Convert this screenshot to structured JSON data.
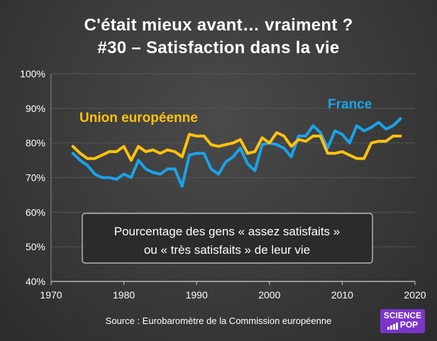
{
  "title_line1": "C'était mieux avant… vraiment ?",
  "title_line2": "#30 – Satisfaction dans la vie",
  "annotation_line1": "Pourcentage des gens « assez satisfaits »",
  "annotation_line2": "ou « très satisfaits » de leur vie",
  "source": "Source : Eurobaromètre de la Commission européenne",
  "logo": {
    "line1": "SCIENCE",
    "line2": "POP"
  },
  "colors": {
    "eu": "#ffc20e",
    "france": "#1aa3e8",
    "background": "#3a3a3a",
    "grid": "#555555"
  },
  "chart_data": {
    "type": "line",
    "title": "C'était mieux avant… vraiment ? #30 – Satisfaction dans la vie",
    "xlabel": "",
    "ylabel": "",
    "xlim": [
      1970,
      2020
    ],
    "ylim": [
      40,
      100
    ],
    "x_ticks": [
      1970,
      1980,
      1990,
      2000,
      2010,
      2020
    ],
    "y_ticks": [
      40,
      50,
      60,
      70,
      80,
      90,
      100
    ],
    "y_tick_labels": [
      "40%",
      "50%",
      "60%",
      "70%",
      "80%",
      "90%",
      "100%"
    ],
    "grid": true,
    "series": [
      {
        "name": "Union européenne",
        "color": "#ffc20e",
        "x": [
          1973,
          1974,
          1975,
          1976,
          1977,
          1978,
          1979,
          1980,
          1981,
          1982,
          1983,
          1984,
          1985,
          1986,
          1987,
          1988,
          1989,
          1990,
          1991,
          1992,
          1993,
          1994,
          1995,
          1996,
          1997,
          1998,
          1999,
          2000,
          2001,
          2002,
          2003,
          2004,
          2005,
          2006,
          2007,
          2008,
          2009,
          2010,
          2011,
          2012,
          2013,
          2014,
          2015,
          2016,
          2017,
          2018
        ],
        "values": [
          79,
          77,
          75.5,
          75.5,
          76.5,
          77.5,
          77.5,
          79,
          75,
          79,
          77.5,
          78,
          77,
          78,
          77.5,
          76,
          82.5,
          82,
          82,
          79.5,
          79,
          79.5,
          80,
          81,
          77,
          77.5,
          81.5,
          80,
          83,
          82,
          79,
          81,
          80.5,
          82,
          82,
          77,
          77,
          77.5,
          76.5,
          75.5,
          75.5,
          80,
          80.5,
          80.5,
          82,
          82
        ]
      },
      {
        "name": "France",
        "color": "#1aa3e8",
        "x": [
          1973,
          1974,
          1975,
          1976,
          1977,
          1978,
          1979,
          1980,
          1981,
          1982,
          1983,
          1984,
          1985,
          1986,
          1987,
          1988,
          1989,
          1990,
          1991,
          1992,
          1993,
          1994,
          1995,
          1996,
          1997,
          1998,
          1999,
          2000,
          2001,
          2002,
          2003,
          2004,
          2005,
          2006,
          2007,
          2008,
          2009,
          2010,
          2011,
          2012,
          2013,
          2014,
          2015,
          2016,
          2017,
          2018
        ],
        "values": [
          77,
          75,
          73.5,
          71,
          70,
          70,
          69.5,
          71,
          70,
          75,
          72.5,
          71.5,
          71,
          72.5,
          72.5,
          67.5,
          76.5,
          77,
          77,
          72.5,
          71,
          74.5,
          76,
          78.5,
          74,
          72,
          79.5,
          80,
          79.5,
          78.5,
          76,
          82,
          82,
          85,
          83,
          78.5,
          83.5,
          82.5,
          80,
          85,
          83.5,
          84.5,
          86,
          84,
          85,
          87
        ]
      }
    ],
    "annotations": [
      "Union européenne",
      "France"
    ]
  }
}
